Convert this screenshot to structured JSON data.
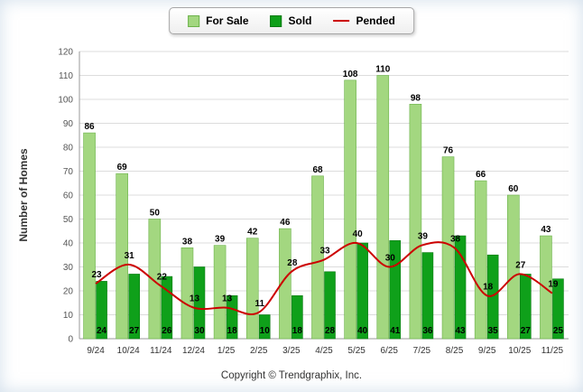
{
  "ylabel": "Number of Homes",
  "footer": "Copyright © Trendgraphix, Inc.",
  "chart_data": {
    "type": "bar",
    "subtype": "grouped bars with overlaid line",
    "categories": [
      "9/24",
      "10/24",
      "11/24",
      "12/24",
      "1/25",
      "2/25",
      "3/25",
      "4/25",
      "5/25",
      "6/25",
      "7/25",
      "8/25",
      "9/25",
      "10/25",
      "11/25"
    ],
    "series": [
      {
        "name": "For Sale",
        "type": "bar",
        "color": "#A3D780",
        "border": "#6CB24A",
        "values": [
          86,
          69,
          50,
          38,
          39,
          42,
          46,
          68,
          108,
          110,
          98,
          76,
          66,
          60,
          43
        ]
      },
      {
        "name": "Sold",
        "type": "bar",
        "color": "#0FA01A",
        "border": "#0A7A12",
        "values": [
          24,
          27,
          26,
          30,
          18,
          10,
          18,
          28,
          40,
          41,
          36,
          43,
          35,
          27,
          25
        ]
      },
      {
        "name": "Pended",
        "type": "line",
        "color": "#CC0000",
        "values": [
          23,
          31,
          22,
          13,
          13,
          11,
          28,
          33,
          40,
          30,
          39,
          38,
          18,
          27,
          19
        ]
      }
    ],
    "title": "",
    "xlabel": "",
    "ylabel": "Number of Homes",
    "ylim": [
      0,
      120
    ],
    "ytick_step": 10,
    "grid": true,
    "legend_position": "top"
  }
}
